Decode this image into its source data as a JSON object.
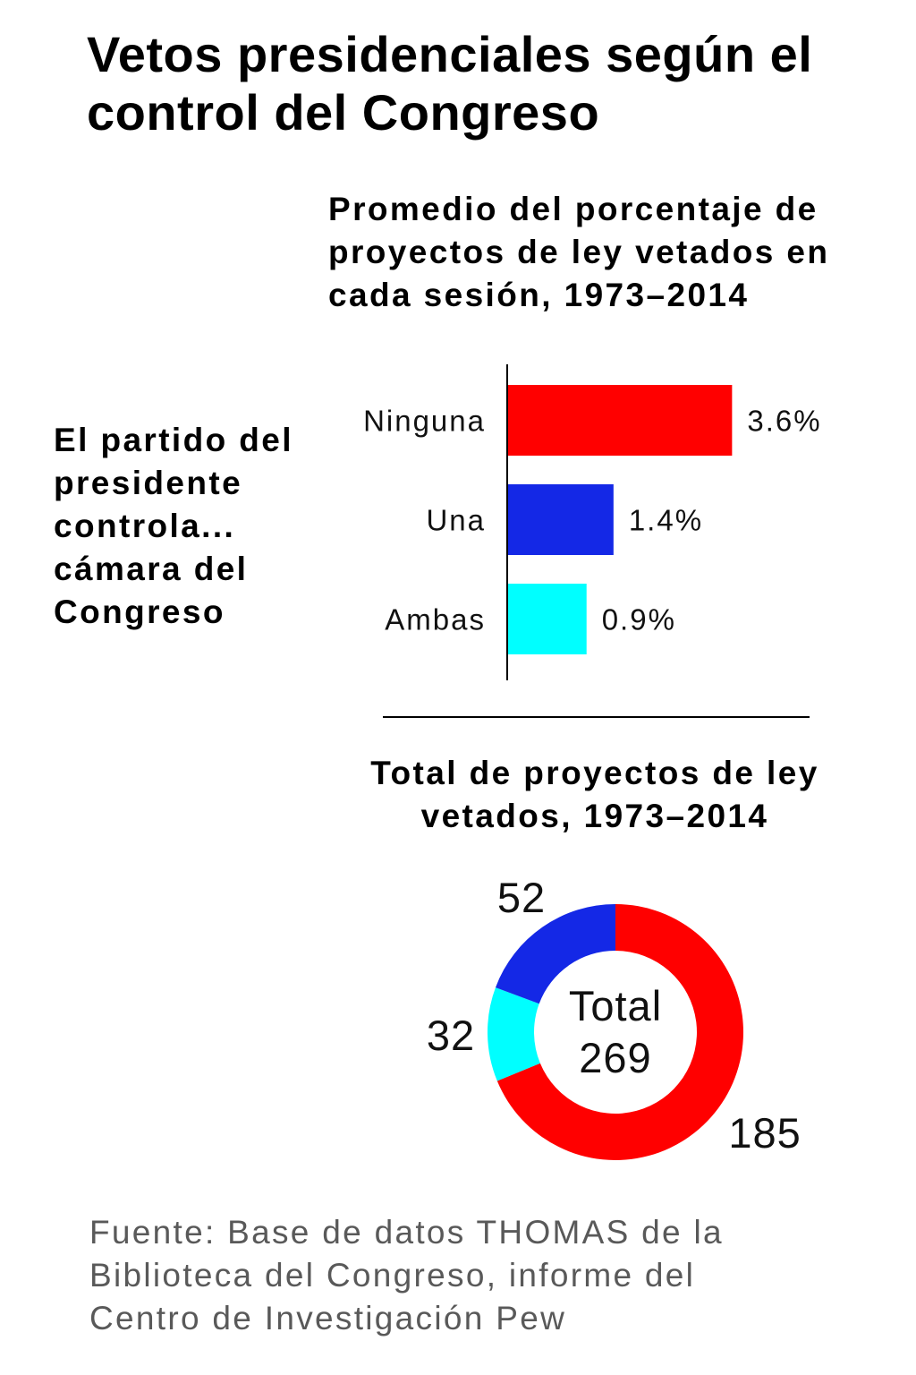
{
  "title": "Vetos presidenciales según el\ncontrol del Congreso",
  "chart_data": [
    {
      "type": "bar",
      "horizontal": true,
      "title": "Promedio del porcentaje de\nproyectos de ley vetados en\ncada sesión, 1973–2014",
      "ylabel": "El partido del\npresidente\ncontrola...\ncámara del\nCongreso",
      "categories": [
        "Ninguna",
        "Una",
        "Ambas"
      ],
      "values": [
        3.6,
        1.4,
        0.9
      ],
      "value_labels": [
        "3.6%",
        "1.4%",
        "0.9%"
      ],
      "colors": [
        "#FF0000",
        "#1428E6",
        "#00FFFF"
      ]
    },
    {
      "type": "pie",
      "donut": true,
      "title": "Total de proyectos de ley\nvetados, 1973–2014",
      "values": [
        185,
        32,
        52
      ],
      "colors": [
        "#FF0000",
        "#00FFFF",
        "#1428E6"
      ],
      "center_label": "Total",
      "total": 269
    }
  ],
  "source": "Fuente: Base de datos THOMAS de la\nBiblioteca del Congreso, informe del\nCentro de Investigación Pew"
}
